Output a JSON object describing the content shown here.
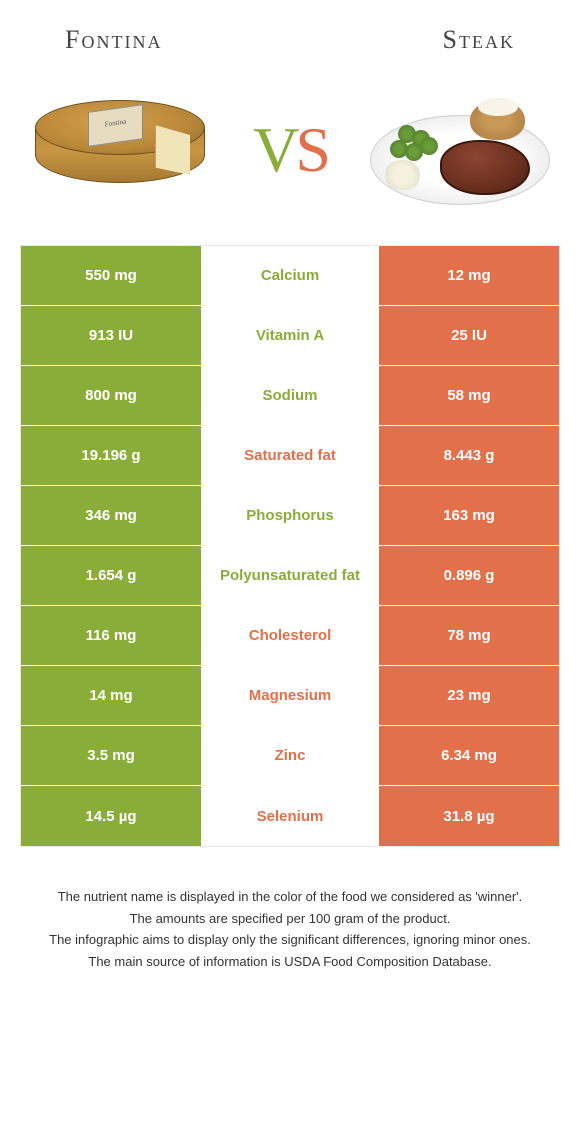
{
  "colors": {
    "left": "#8aad3a",
    "right": "#e2704a",
    "row_border": "#ffffff"
  },
  "foods": {
    "left": {
      "name": "Fontina"
    },
    "right": {
      "name": "Steak"
    }
  },
  "vs": {
    "v": "V",
    "s": "S"
  },
  "cheese_label": "Fontina",
  "rows": [
    {
      "nutrient": "Calcium",
      "left": "550 mg",
      "right": "12 mg",
      "winner": "left"
    },
    {
      "nutrient": "Vitamin A",
      "left": "913 IU",
      "right": "25 IU",
      "winner": "left"
    },
    {
      "nutrient": "Sodium",
      "left": "800 mg",
      "right": "58 mg",
      "winner": "left"
    },
    {
      "nutrient": "Saturated fat",
      "left": "19.196 g",
      "right": "8.443 g",
      "winner": "right"
    },
    {
      "nutrient": "Phosphorus",
      "left": "346 mg",
      "right": "163 mg",
      "winner": "left"
    },
    {
      "nutrient": "Polyunsaturated fat",
      "left": "1.654 g",
      "right": "0.896 g",
      "winner": "left"
    },
    {
      "nutrient": "Cholesterol",
      "left": "116 mg",
      "right": "78 mg",
      "winner": "right"
    },
    {
      "nutrient": "Magnesium",
      "left": "14 mg",
      "right": "23 mg",
      "winner": "right"
    },
    {
      "nutrient": "Zinc",
      "left": "3.5 mg",
      "right": "6.34 mg",
      "winner": "right"
    },
    {
      "nutrient": "Selenium",
      "left": "14.5 µg",
      "right": "31.8 µg",
      "winner": "right"
    }
  ],
  "footer": {
    "line1": "The nutrient name is displayed in the color of the food we considered as 'winner'.",
    "line2": "The amounts are specified per 100 gram of the product.",
    "line3": "The infographic aims to display only the significant differences, ignoring minor ones.",
    "line4": "The main source of information is USDA Food Composition Database."
  }
}
